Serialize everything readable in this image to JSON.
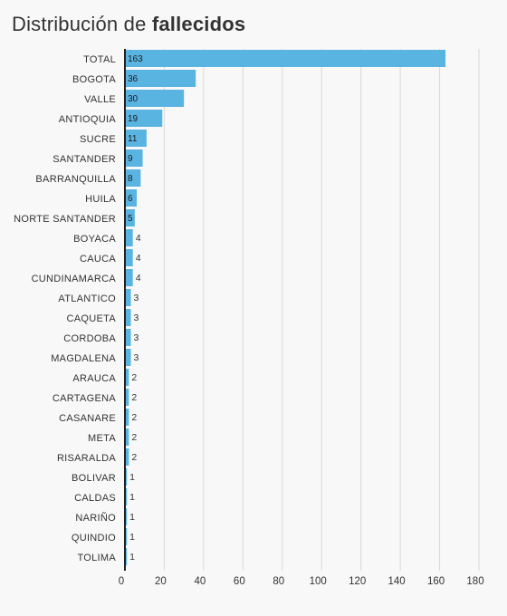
{
  "title": {
    "regular": "Distribución de",
    "bold": "fallecidos"
  },
  "colors": {
    "bar": "#5ab4e2",
    "axis": "#222222",
    "grid": "#d9d9d9",
    "background": "#f8f8f8"
  },
  "chart_data": {
    "type": "bar",
    "orientation": "horizontal",
    "title": "Distribución de fallecidos",
    "categories": [
      "TOTAL",
      "BOGOTA",
      "VALLE",
      "ANTIOQUIA",
      "SUCRE",
      "SANTANDER",
      "BARRANQUILLA",
      "HUILA",
      "NORTE SANTANDER",
      "BOYACA",
      "CAUCA",
      "CUNDINAMARCA",
      "ATLANTICO",
      "CAQUETA",
      "CORDOBA",
      "MAGDALENA",
      "ARAUCA",
      "CARTAGENA",
      "CASANARE",
      "META",
      "RISARALDA",
      "BOLIVAR",
      "CALDAS",
      "NARIÑO",
      "QUINDIO",
      "TOLIMA"
    ],
    "values": [
      163,
      36,
      30,
      19,
      11,
      9,
      8,
      6,
      5,
      4,
      4,
      4,
      3,
      3,
      3,
      3,
      2,
      2,
      2,
      2,
      2,
      1,
      1,
      1,
      1,
      1
    ],
    "xlabel": "",
    "ylabel": "",
    "xlim": [
      0,
      180
    ],
    "xticks": [
      0,
      20,
      40,
      60,
      80,
      100,
      120,
      140,
      160,
      180
    ],
    "grid": true,
    "legend": "none"
  }
}
